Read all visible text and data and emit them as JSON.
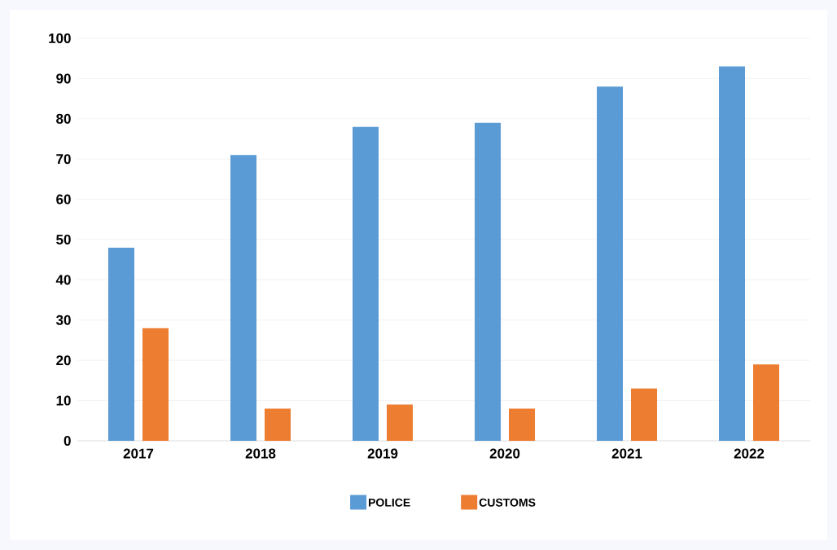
{
  "chart_data": {
    "type": "bar",
    "categories": [
      "2017",
      "2018",
      "2019",
      "2020",
      "2021",
      "2022"
    ],
    "series": [
      {
        "name": "POLICE",
        "color": "#5b9bd5",
        "values": [
          48,
          71,
          78,
          79,
          88,
          93
        ]
      },
      {
        "name": "CUSTOMS",
        "color": "#ed7d31",
        "values": [
          28,
          8,
          9,
          8,
          13,
          19
        ]
      }
    ],
    "ylim": [
      0,
      100
    ],
    "yticks": [
      0,
      10,
      20,
      30,
      40,
      50,
      60,
      70,
      80,
      90,
      100
    ],
    "grid": "y",
    "legend": "bottom"
  }
}
